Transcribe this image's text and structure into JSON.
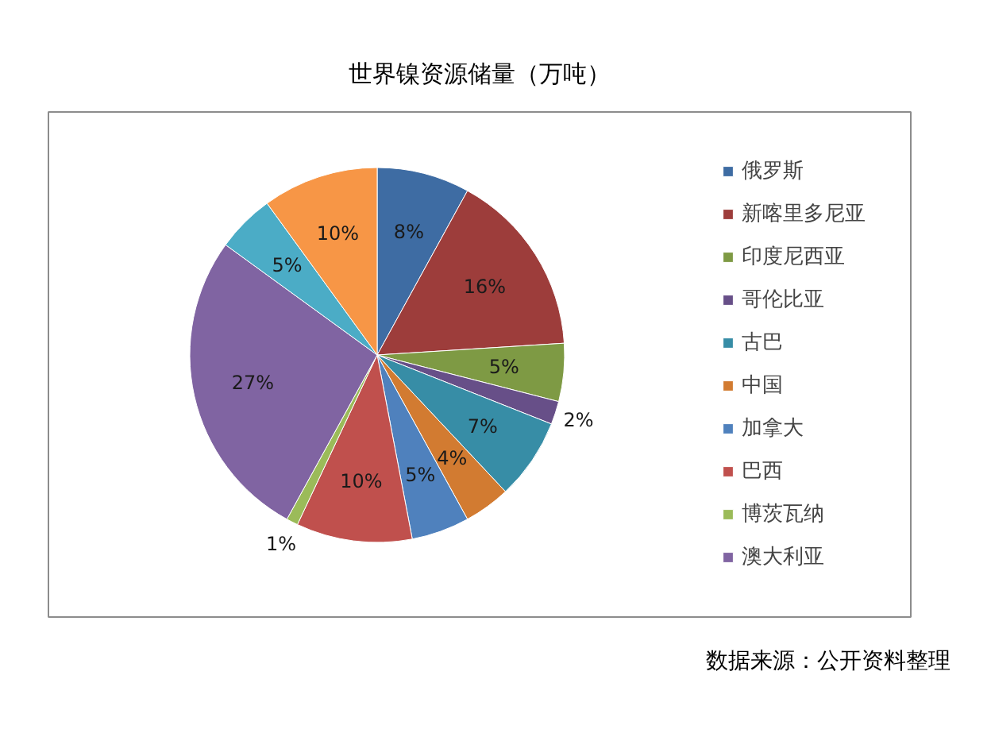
{
  "chart_data": {
    "type": "pie",
    "title": "世界镍资源储量（万吨）",
    "categories": [
      "俄罗斯",
      "新喀里多尼亚",
      "印度尼西亚",
      "哥伦比亚",
      "古巴",
      "中国",
      "加拿大",
      "巴西",
      "博茨瓦纳",
      "澳大利亚",
      null,
      null
    ],
    "values": [
      8,
      16,
      5,
      2,
      7,
      4,
      5,
      10,
      1,
      27,
      5,
      10
    ],
    "colors": [
      "#3e6ca3",
      "#9d3d3b",
      "#7e9a44",
      "#674f88",
      "#378da6",
      "#d27b31",
      "#4f81bd",
      "#c0504d",
      "#9bbb59",
      "#8064a2",
      "#4bacc6",
      "#f79646"
    ],
    "value_labels": [
      "8%",
      "16%",
      "5%",
      "2%",
      "7%",
      "4%",
      "5%",
      "10%",
      "1%",
      "27%",
      "5%",
      "10%"
    ],
    "legend": "right",
    "annotations": [
      "数据来源：公开资料整理"
    ]
  }
}
